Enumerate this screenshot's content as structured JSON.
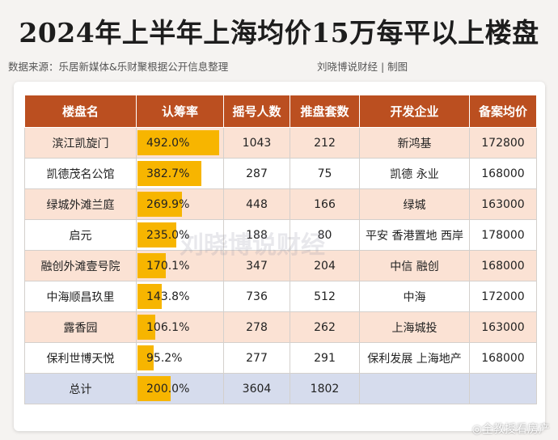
{
  "title": "2024年上半年上海均价15万每平以上楼盘",
  "source": "数据来源：乐居新媒体&乐财聚根据公开信息整理",
  "credit": "刘晓博说财经 | 制图",
  "watermark": "刘晓博说财经",
  "weibo": "◎全教授看房产",
  "colors": {
    "header": "#bb4f20",
    "bar": "#f7b500",
    "stripe": "#fbe2d4",
    "total": "#d6dced"
  },
  "headers": [
    "楼盘名",
    "认筹率",
    "摇号人数",
    "推盘套数",
    "开发企业",
    "备案均价"
  ],
  "rows": [
    {
      "name": "滨江凯旋门",
      "rate": "492.0%",
      "lottery": "1043",
      "units": "212",
      "developer": "新鸿基",
      "price": "172800"
    },
    {
      "name": "凯德茂名公馆",
      "rate": "382.7%",
      "lottery": "287",
      "units": "75",
      "developer": "凯德 永业",
      "price": "168000"
    },
    {
      "name": "绿城外滩兰庭",
      "rate": "269.9%",
      "lottery": "448",
      "units": "166",
      "developer": "绿城",
      "price": "163000"
    },
    {
      "name": "启元",
      "rate": "235.0%",
      "lottery": "188",
      "units": "80",
      "developer": "平安 香港置地 西岸",
      "price": "178000"
    },
    {
      "name": "融创外滩壹号院",
      "rate": "170.1%",
      "lottery": "347",
      "units": "204",
      "developer": "中信 融创",
      "price": "168000"
    },
    {
      "name": "中海顺昌玖里",
      "rate": "143.8%",
      "lottery": "736",
      "units": "512",
      "developer": "中海",
      "price": "172000"
    },
    {
      "name": "露香园",
      "rate": "106.1%",
      "lottery": "278",
      "units": "262",
      "developer": "上海城投",
      "price": "163000"
    },
    {
      "name": "保利世博天悦",
      "rate": "95.2%",
      "lottery": "277",
      "units": "291",
      "developer": "保利发展 上海地产",
      "price": "168000"
    }
  ],
  "total": {
    "name": "总计",
    "rate": "200.0%",
    "lottery": "3604",
    "units": "1802",
    "developer": "",
    "price": ""
  },
  "rate_values": [
    492.0,
    382.7,
    269.9,
    235.0,
    170.1,
    143.8,
    106.1,
    95.2
  ],
  "total_rate_value": 200.0,
  "rate_scale_max": 492.0
}
